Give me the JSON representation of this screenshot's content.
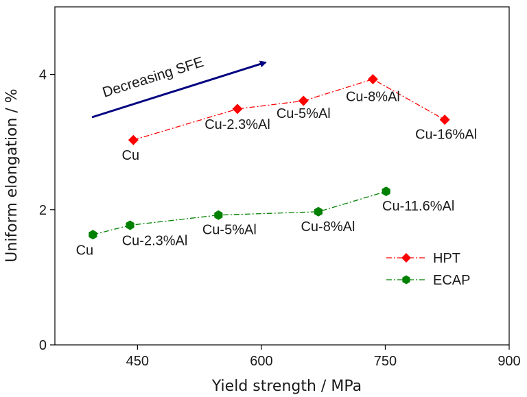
{
  "chart_data": {
    "type": "line",
    "xlabel": "Yield strength / MPa",
    "ylabel": "Uniform elongation / %",
    "xlim": [
      350,
      900
    ],
    "ylim": [
      0,
      5
    ],
    "x_ticks": [
      450,
      600,
      750,
      900
    ],
    "y_ticks": [
      0,
      2,
      4
    ],
    "grid": false,
    "legend_position": "right",
    "series": [
      {
        "name": "HPT",
        "color": "#ff0000",
        "marker": "diamond",
        "line_style": "dash-dot",
        "x": [
          445,
          571,
          651,
          735,
          822
        ],
        "y": [
          3.03,
          3.49,
          3.61,
          3.93,
          3.33
        ],
        "labels": [
          "Cu",
          "Cu-2.3%Al",
          "Cu-5%Al",
          "Cu-8%Al",
          "Cu-16%Al"
        ]
      },
      {
        "name": "ECAP",
        "color": "#008000",
        "marker": "hexagon",
        "line_style": "dash-dot",
        "x": [
          396,
          441,
          548,
          669,
          751
        ],
        "y": [
          1.63,
          1.77,
          1.92,
          1.97,
          2.27
        ],
        "labels": [
          "Cu",
          "Cu-2.3%Al",
          "Cu-5%Al",
          "Cu-8%Al",
          "Cu-11.6%Al"
        ]
      }
    ],
    "annotations": [
      {
        "text": "Decreasing SFE",
        "arrow_color": "#000080"
      }
    ]
  }
}
